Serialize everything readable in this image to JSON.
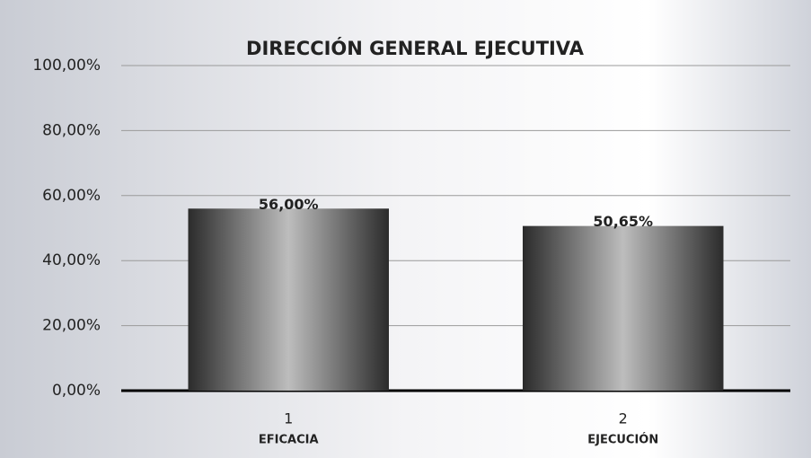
{
  "chart_data": {
    "type": "bar",
    "title": "DIRECCIÓN GENERAL EJECUTIVA",
    "categories": [
      "1",
      "2"
    ],
    "category_labels": [
      "EFICACIA",
      "EJECUCIÓN"
    ],
    "values": [
      56,
      50.65
    ],
    "value_labels": [
      "56,00%",
      "50,65%"
    ],
    "color": "#2b2b2b",
    "ylim": [
      0,
      100
    ],
    "yticks": [
      {
        "value": 0,
        "label": "0,00%"
      },
      {
        "value": 20,
        "label": "20,00%"
      },
      {
        "value": 40,
        "label": "40,00%"
      },
      {
        "value": 60,
        "label": "60,00%"
      },
      {
        "value": 80,
        "label": "80,00%"
      },
      {
        "value": 100,
        "label": "100,00%"
      }
    ],
    "grid": true
  }
}
